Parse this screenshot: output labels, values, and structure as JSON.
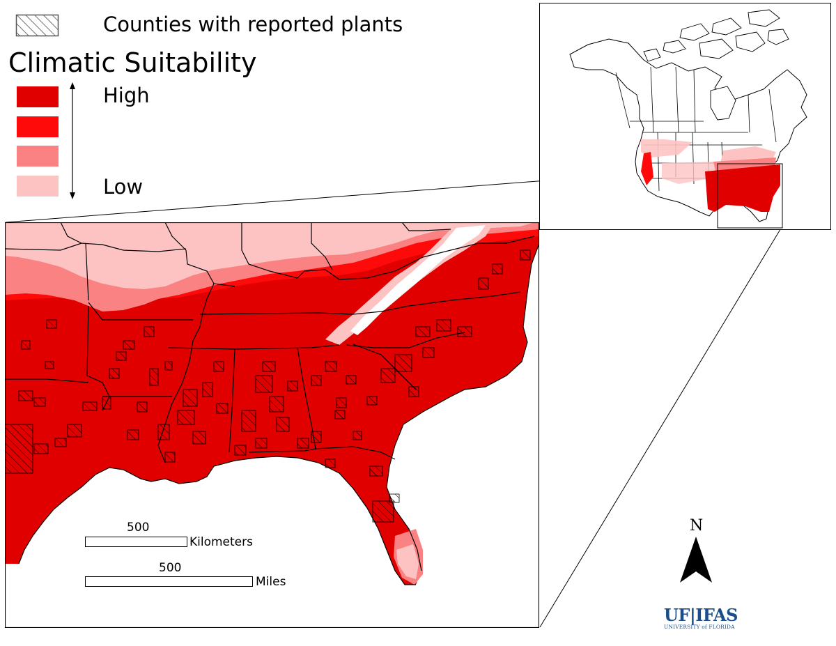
{
  "legend": {
    "hatch_label": "Counties with reported plants",
    "title": "Climatic Suitability",
    "high_label": "High",
    "low_label": "Low",
    "classes": [
      {
        "level": "high",
        "color": "#e00000"
      },
      {
        "level": "medium-high",
        "color": "#ff0a0a"
      },
      {
        "level": "medium-low",
        "color": "#fa8282"
      },
      {
        "level": "low",
        "color": "#fdc3c3"
      }
    ]
  },
  "scale_bars": [
    {
      "value": "500",
      "unit": "Kilometers"
    },
    {
      "value": "500",
      "unit": "Miles"
    }
  ],
  "north_arrow": {
    "letter": "N"
  },
  "logo": {
    "main": "UF|IFAS",
    "sub": "UNIVERSITY of FLORIDA",
    "color": "#1a4e8a"
  }
}
